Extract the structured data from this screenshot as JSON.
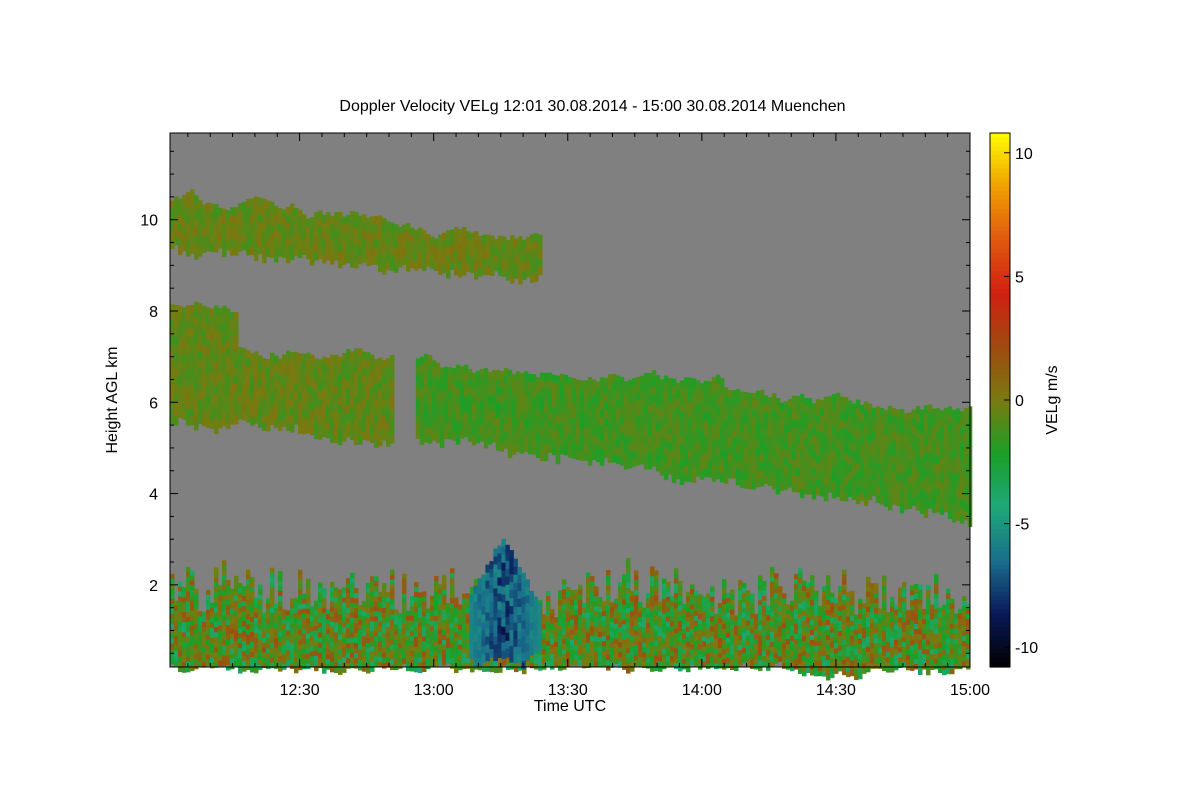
{
  "chart_data": {
    "type": "heatmap",
    "title": "Doppler Velocity VELg   12:01 30.08.2014 - 15:00 30.08.2014 Muenchen",
    "xlabel": "Time UTC",
    "ylabel": "Height AGL km",
    "colorbar_label": "VELg m/s",
    "x_range": [
      "12:01",
      "15:00"
    ],
    "x_ticks": [
      "12:30",
      "13:00",
      "13:30",
      "14:00",
      "14:30",
      "15:00"
    ],
    "y_range": [
      0.2,
      11.9
    ],
    "y_ticks": [
      2,
      4,
      6,
      8,
      10
    ],
    "colorbar_range": [
      -10.8,
      10.8
    ],
    "colorbar_ticks": [
      10,
      5,
      0,
      -5,
      -10
    ],
    "background_color": "#808080",
    "colormap": [
      "#000000",
      "#0a1a5a",
      "#1a6e8c",
      "#1ea878",
      "#1aa028",
      "#7a7a10",
      "#a04a10",
      "#d02010",
      "#e05810",
      "#f0a000",
      "#ffff00"
    ],
    "features": [
      {
        "name": "upper cloud layer",
        "time_start": "12:01",
        "time_end": "13:24",
        "height_bottom_km": 8.7,
        "height_top_km": 10.6,
        "velocity_ms": -0.5
      },
      {
        "name": "middle cloud layer west",
        "time_start": "12:01",
        "time_end": "12:51",
        "height_bottom_km": 5.1,
        "height_top_km": 8.6,
        "velocity_ms": -0.6
      },
      {
        "name": "middle cloud layer east",
        "time_start": "12:56",
        "time_end": "15:00",
        "height_bottom_km": 3.6,
        "height_top_km": 7.0,
        "velocity_ms": -1.3
      },
      {
        "name": "boundary layer",
        "time_start": "12:01",
        "time_end": "15:00",
        "height_bottom_km": 0.2,
        "height_top_km": 2.4,
        "velocity_ms": -1.0
      },
      {
        "name": "convective downdraft",
        "time_start": "13:08",
        "time_end": "13:24",
        "height_bottom_km": 0.4,
        "height_top_km": 3.1,
        "velocity_ms": -5.5
      }
    ]
  }
}
